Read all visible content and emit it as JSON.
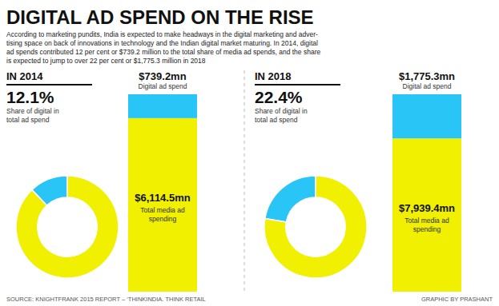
{
  "title": "DIGITAL AD SPEND ON THE RISE",
  "subtitle": "According to marketing pundits, India is expected to make headways in the digital marketing and adver-\ntising space on back of innovations in technology and the Indian digital market maturing. In 2014, digital\nad spends contributed 12 per cent or $739.2 million to the total share of media ad spends, and the share\nis expected to jump to over 22 per cent or $1,775.3 million in 2018",
  "annotations": [
    "SOURCE: KNIGHTFRANK 2015 REPORT – ‘THINKINDIA. THINK RETAIL",
    "GRAPHIC BY PRASHANT"
  ],
  "chart_data": [
    {
      "type": "pie",
      "title": "IN 2014",
      "values": [
        12.1,
        87.9
      ],
      "colors": [
        "#29C5F6",
        "#F0F000"
      ],
      "annotations": [
        "12.1%",
        "Share of digital in\ntotal ad spend"
      ]
    },
    {
      "type": "bar",
      "stacked": true,
      "categories": [
        null
      ],
      "tick_labels": false,
      "ylim": [
        0,
        1
      ],
      "series": [
        {
          "color": "#F0F000",
          "values": [
            0.8791
          ]
        },
        {
          "color": "#29C5F6",
          "values": [
            0.1209
          ]
        }
      ],
      "annotations": [
        "$739.2mn",
        "Digital ad spend",
        "$6,114.5mn",
        "Total media ad\nspending"
      ]
    },
    {
      "type": "pie",
      "title": "IN 2018",
      "values": [
        22.4,
        77.6
      ],
      "colors": [
        "#29C5F6",
        "#F0F000"
      ],
      "annotations": [
        "22.4%",
        "Share of digital in\ntotal ad spend"
      ]
    },
    {
      "type": "bar",
      "stacked": true,
      "categories": [
        null
      ],
      "tick_labels": false,
      "ylim": [
        0,
        1
      ],
      "series": [
        {
          "color": "#F0F000",
          "values": [
            0.7763
          ]
        },
        {
          "color": "#29C5F6",
          "values": [
            0.2237
          ]
        }
      ],
      "annotations": [
        "$1,775.3mn",
        "Digital ad spend",
        "$7,939.4mn",
        "Total media ad\nspending"
      ]
    }
  ]
}
